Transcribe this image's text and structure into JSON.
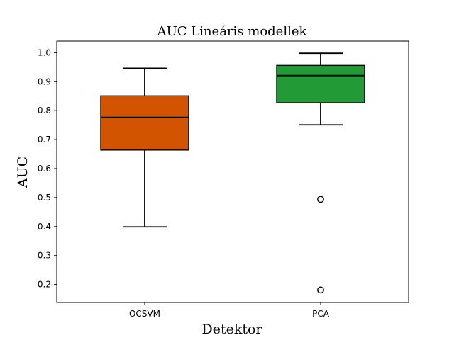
{
  "chart_data": {
    "type": "box",
    "title": "AUC Lineáris modellek",
    "xlabel": "Detektor",
    "ylabel": "AUC",
    "ylim": [
      0.138,
      1.04
    ],
    "yticks": [
      "0.2",
      "0.3",
      "0.4",
      "0.5",
      "0.6",
      "0.7",
      "0.8",
      "0.9",
      "1.0"
    ],
    "grid": false,
    "categories": [
      "OCSVM",
      "PCA"
    ],
    "boxes": [
      {
        "category": "OCSVM",
        "color": "#d35400",
        "whisker_low": 0.399,
        "q1": 0.664,
        "median": 0.777,
        "q3": 0.851,
        "whisker_high": 0.946,
        "outliers": []
      },
      {
        "category": "PCA",
        "color": "#229a35",
        "whisker_low": 0.751,
        "q1": 0.827,
        "median": 0.921,
        "q3": 0.956,
        "whisker_high": 0.998,
        "outliers": [
          0.494,
          0.181
        ]
      }
    ]
  }
}
